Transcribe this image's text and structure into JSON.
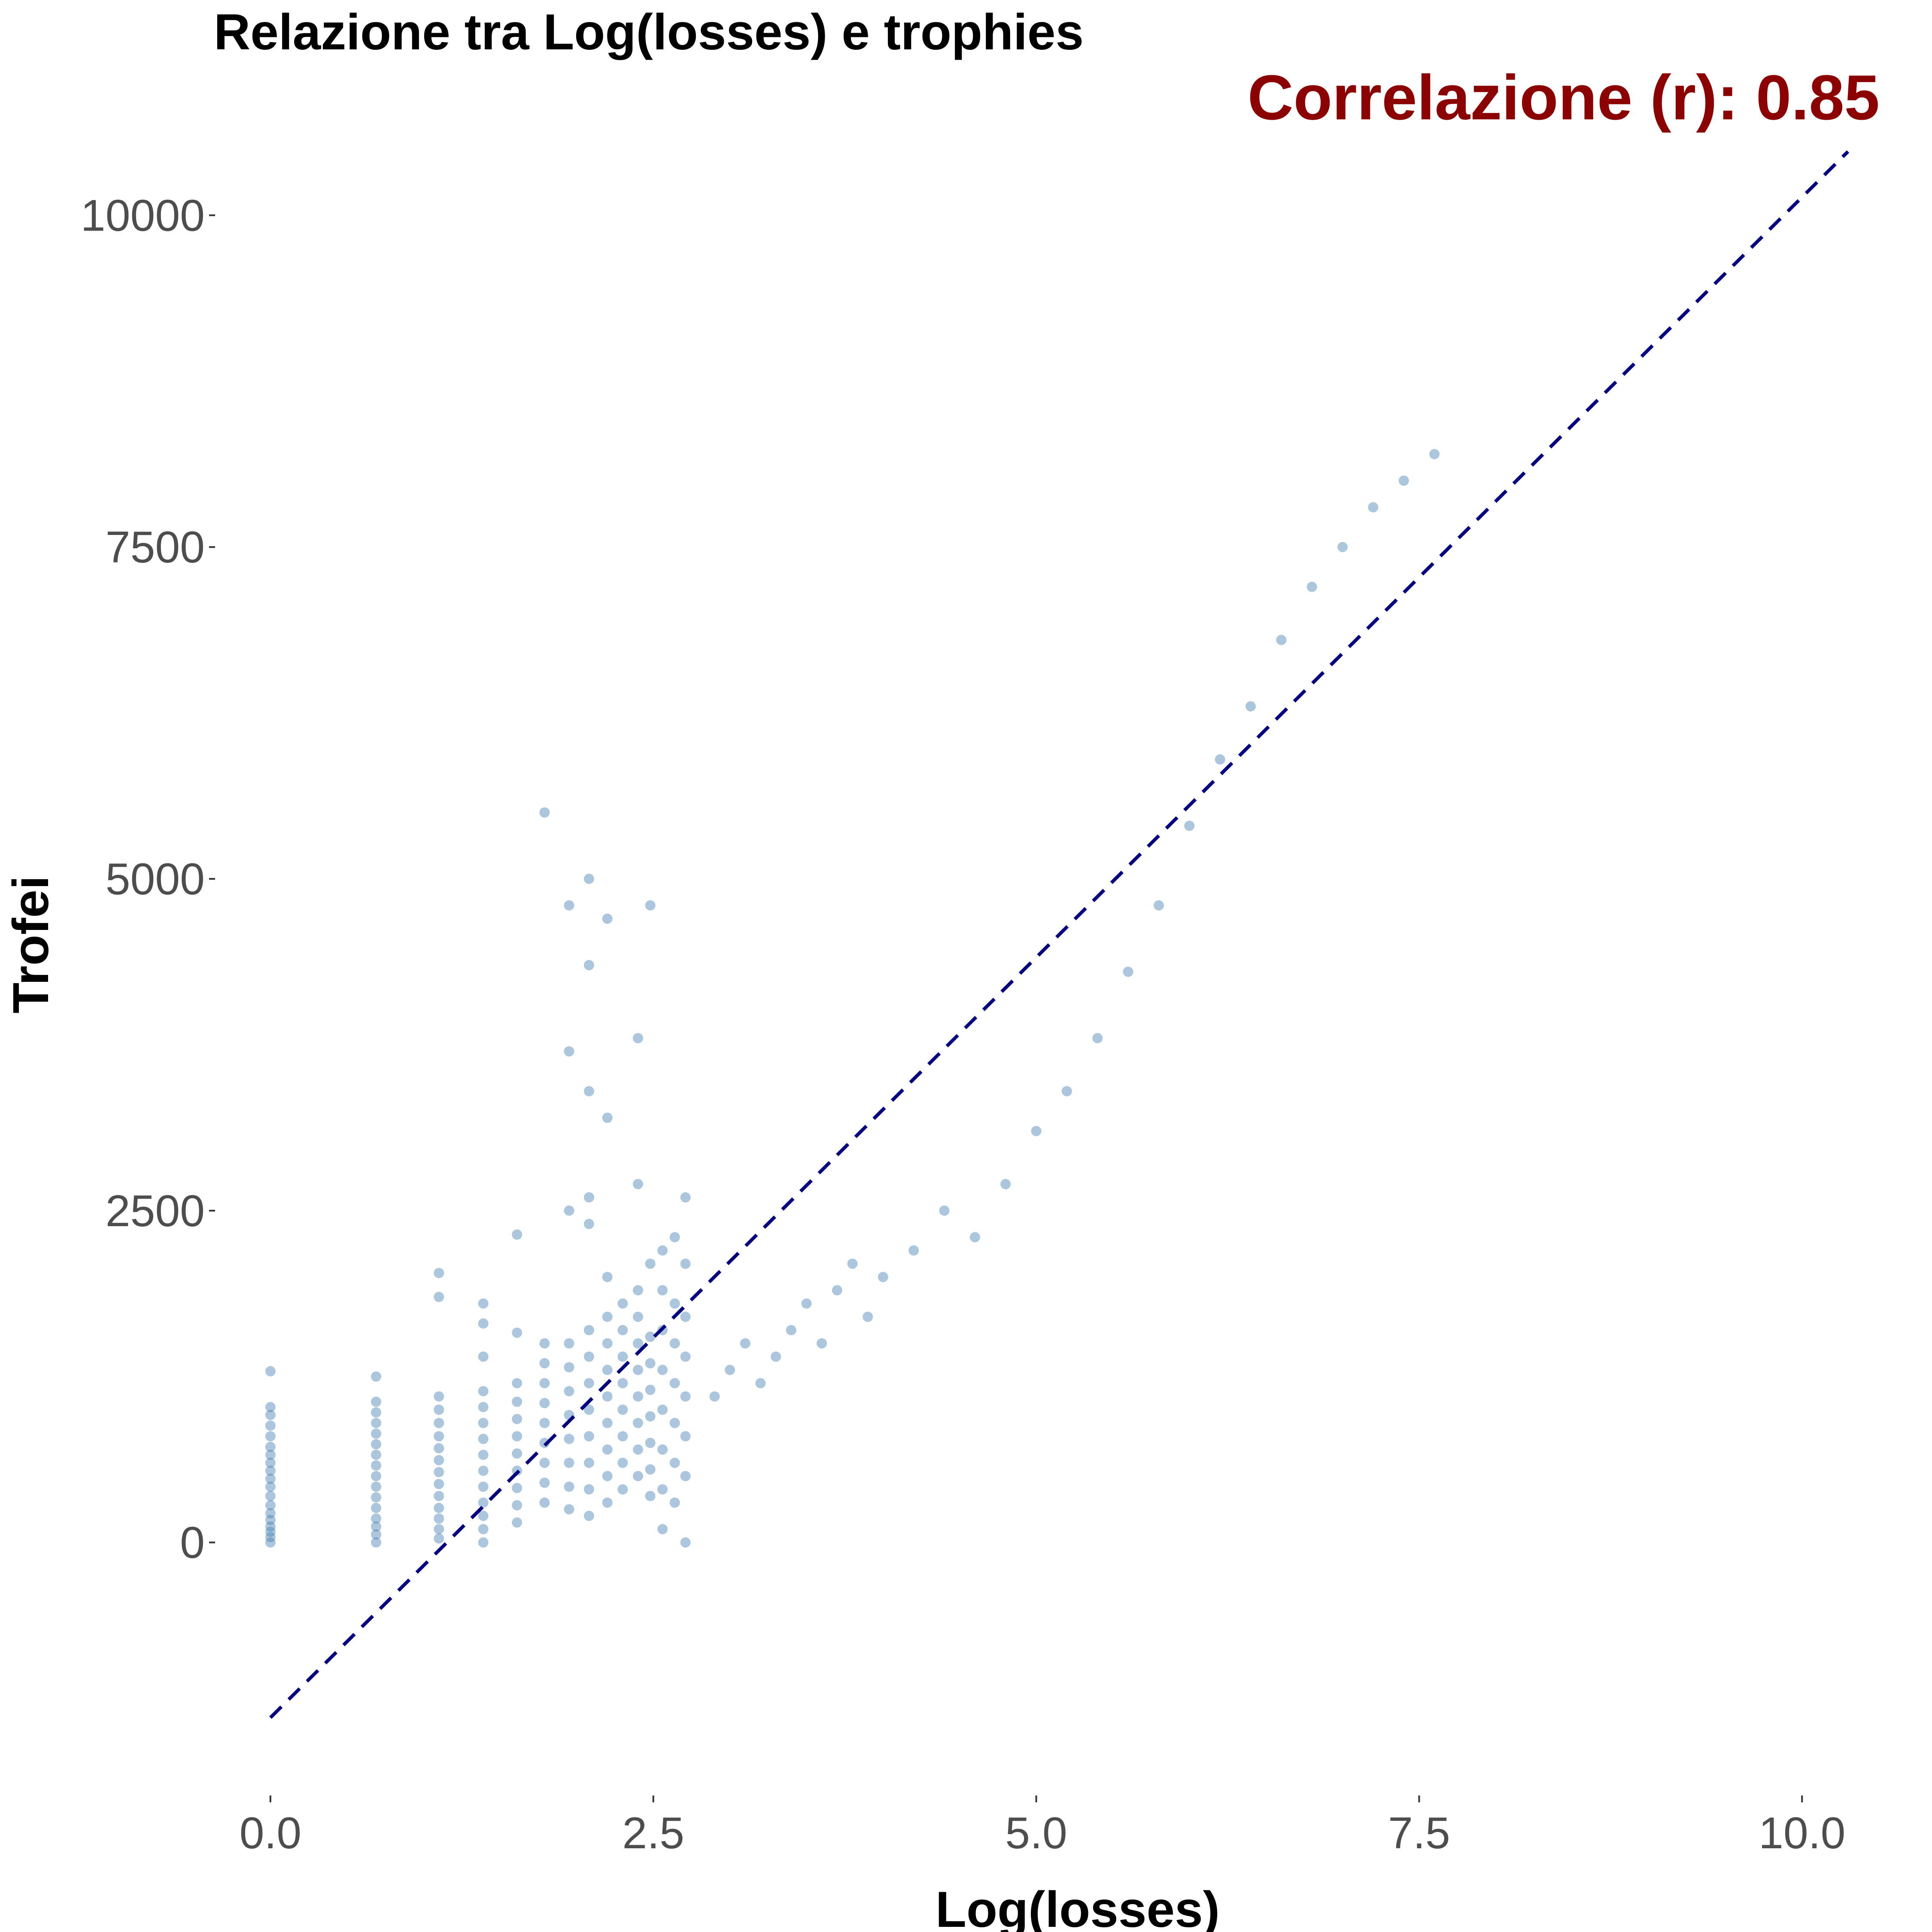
{
  "colors": {
    "points": "#4682b4",
    "fit_line": "#000080",
    "annotation": "#8b0000",
    "tick_text": "#4d4d4d",
    "background": "#ffffff"
  },
  "chart_data": {
    "type": "scatter",
    "title": "Relazione tra Log(losses) e trophies",
    "xlabel": "Log(losses)",
    "ylabel": "Trofei",
    "annotation": "Correlazione (r): 0.85",
    "xlim": [
      -0.35,
      10.4
    ],
    "ylim": [
      -1900,
      10700
    ],
    "x_ticks": [
      0,
      2.5,
      5,
      7.5,
      10
    ],
    "x_tick_labels": [
      "0.0",
      "2.5",
      "5.0",
      "7.5",
      "10.0"
    ],
    "y_ticks": [
      0,
      2500,
      5000,
      7500,
      10000
    ],
    "y_tick_labels": [
      "0",
      "2500",
      "5000",
      "7500",
      "10000"
    ],
    "grid": false,
    "legend": "none",
    "fit_line": {
      "style": "dashed",
      "x": [
        0,
        10.3
      ],
      "y": [
        -1320,
        10480
      ]
    },
    "series": [
      {
        "clusters": [
          {
            "x": 0.0,
            "y": [
              0,
              40,
              80,
              120,
              170,
              220,
              280,
              350,
              420,
              480,
              540,
              600,
              660,
              720,
              800,
              880,
              960,
              1020,
              1290
            ]
          },
          {
            "x": 0.69,
            "y": [
              0,
              60,
              120,
              180,
              260,
              340,
              420,
              500,
              580,
              660,
              740,
              820,
              900,
              980,
              1060,
              1250
            ]
          },
          {
            "x": 1.1,
            "y": [
              30,
              100,
              180,
              260,
              350,
              440,
              530,
              620,
              710,
              800,
              900,
              1000,
              1100,
              1850,
              2030
            ]
          },
          {
            "x": 1.39,
            "y": [
              0,
              100,
              200,
              300,
              420,
              540,
              660,
              780,
              900,
              1020,
              1140,
              1400,
              1650,
              1800
            ]
          },
          {
            "x": 1.61,
            "y": [
              150,
              280,
              410,
              540,
              670,
              800,
              930,
              1060,
              1200,
              1580,
              2320
            ]
          },
          {
            "x": 1.79,
            "y": [
              300,
              450,
              600,
              750,
              900,
              1050,
              1200,
              1350,
              1500,
              5500
            ]
          },
          {
            "x": 1.95,
            "y": [
              250,
              420,
              600,
              780,
              960,
              1140,
              1320,
              1500,
              2500,
              3700,
              4800
            ]
          },
          {
            "x": 2.08,
            "y": [
              200,
              400,
              600,
              800,
              1000,
              1200,
              1400,
              1600,
              2400,
              2600,
              3400,
              4350,
              5000
            ]
          },
          {
            "x": 2.2,
            "y": [
              300,
              500,
              700,
              900,
              1100,
              1300,
              1500,
              1700,
              2000,
              3200,
              4700
            ]
          },
          {
            "x": 2.3,
            "y": [
              400,
              600,
              800,
              1000,
              1200,
              1400,
              1600,
              1800
            ]
          },
          {
            "x": 2.4,
            "y": [
              500,
              700,
              900,
              1100,
              1300,
              1500,
              1700,
              1900,
              2700,
              3800
            ]
          },
          {
            "x": 2.48,
            "y": [
              350,
              550,
              750,
              950,
              1150,
              1350,
              1550,
              2100,
              4800
            ]
          },
          {
            "x": 2.56,
            "y": [
              100,
              400,
              700,
              1000,
              1300,
              1600,
              1900,
              2200
            ]
          },
          {
            "x": 2.64,
            "y": [
              300,
              600,
              900,
              1200,
              1500,
              1800,
              2300
            ]
          },
          {
            "x": 2.71,
            "y": [
              0,
              500,
              800,
              1100,
              1400,
              1700,
              2100,
              2600
            ]
          }
        ],
        "scatter_points": [
          [
            2.9,
            1100
          ],
          [
            3.0,
            1300
          ],
          [
            3.1,
            1500
          ],
          [
            3.2,
            1200
          ],
          [
            3.3,
            1400
          ],
          [
            3.4,
            1600
          ],
          [
            3.5,
            1800
          ],
          [
            3.6,
            1500
          ],
          [
            3.7,
            1900
          ],
          [
            3.8,
            2100
          ],
          [
            3.9,
            1700
          ],
          [
            4.0,
            2000
          ],
          [
            4.2,
            2200
          ],
          [
            4.4,
            2500
          ],
          [
            4.6,
            2300
          ],
          [
            4.8,
            2700
          ],
          [
            5.0,
            3100
          ],
          [
            5.2,
            3400
          ],
          [
            5.4,
            3800
          ],
          [
            5.6,
            4300
          ],
          [
            5.8,
            4800
          ],
          [
            6.0,
            5400
          ],
          [
            6.2,
            5900
          ],
          [
            6.4,
            6300
          ],
          [
            6.6,
            6800
          ],
          [
            6.8,
            7200
          ],
          [
            7.0,
            7500
          ],
          [
            7.2,
            7800
          ],
          [
            7.4,
            8000
          ],
          [
            7.6,
            8200
          ]
        ]
      }
    ]
  }
}
